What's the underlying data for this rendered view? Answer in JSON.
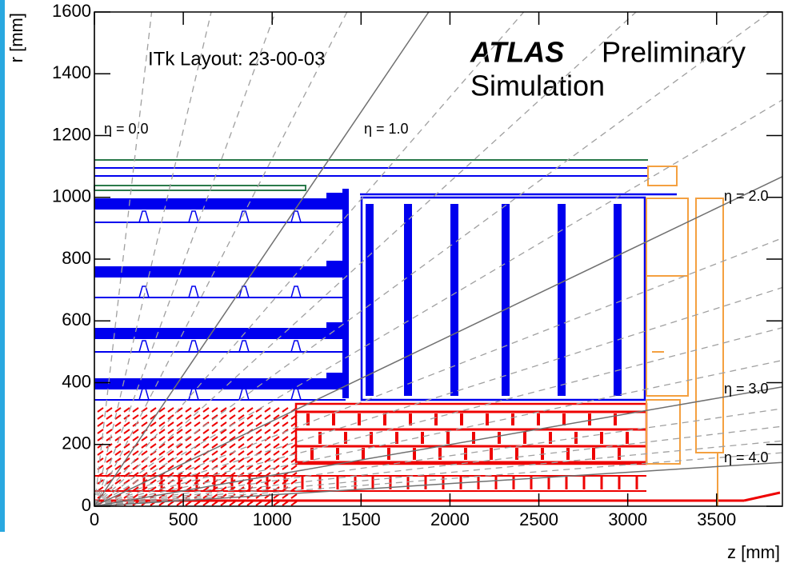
{
  "chart_data": {
    "type": "eta-layout",
    "title": "ITk Layout: 23-00-03",
    "experiment": "ATLAS",
    "status": "Preliminary",
    "subtitle": "Simulation",
    "x_label": "z [mm]",
    "y_label": "r [mm]",
    "xlim": [
      0,
      3870
    ],
    "ylim": [
      0,
      1600
    ],
    "xticks": [
      0,
      500,
      1000,
      1500,
      2000,
      2500,
      3000,
      3500
    ],
    "yticks": [
      0,
      200,
      400,
      600,
      800,
      1000,
      1200,
      1400,
      1600
    ],
    "eta_lines": [
      {
        "value": 0,
        "label": "η = 0.0"
      },
      {
        "value": 1,
        "label": "η = 1.0"
      },
      {
        "value": 2,
        "label": "η = 2.0"
      },
      {
        "value": 3,
        "label": "η = 3.0"
      },
      {
        "value": 4,
        "label": "η = 4.0"
      }
    ],
    "eta_dashed": [
      0.2,
      0.4,
      0.6,
      0.8,
      1.2,
      1.4,
      1.6,
      1.8,
      2.2,
      2.4,
      2.6,
      2.8,
      3.2,
      3.4,
      3.6,
      3.8
    ],
    "eta_color": "#707070",
    "dashed_color": "#a0a0a0"
  }
}
